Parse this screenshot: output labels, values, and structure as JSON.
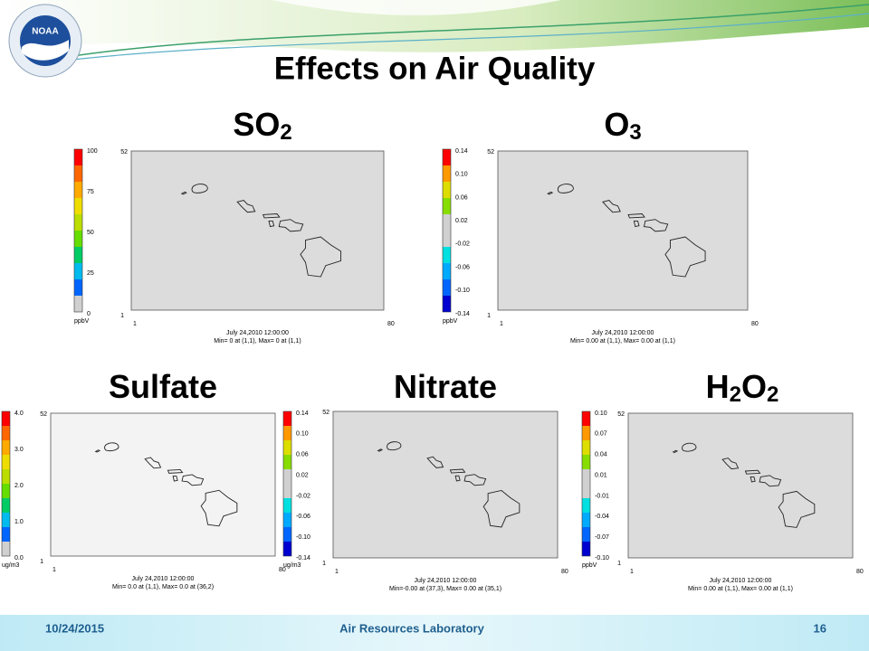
{
  "header": {
    "logo": "NOAA",
    "title": "Effects on Air Quality"
  },
  "panels": [
    {
      "label": [
        "SO",
        "2"
      ],
      "ticks": [
        "100",
        "75",
        "50",
        "25",
        "0"
      ],
      "unit": "ppbV",
      "y_top": "52",
      "y_bottom": "1",
      "x_left": "1",
      "x_right": "80",
      "date": "July 24,2010 12:00:00",
      "minmax": "Min=   0 at (1,1), Max=   0 at (1,1)"
    },
    {
      "label": [
        "O",
        "3"
      ],
      "ticks": [
        "0.14",
        "0.10",
        "0.06",
        "0.02",
        "-0.02",
        "-0.06",
        "-0.10",
        "-0.14"
      ],
      "unit": "ppbV",
      "y_top": "52",
      "y_bottom": "1",
      "x_left": "1",
      "x_right": "80",
      "date": "July 24,2010 12:00:00",
      "minmax": "Min= 0.00 at (1,1), Max= 0.00 at (1,1)"
    },
    {
      "label": [
        "Sulfate"
      ],
      "ticks": [
        "4.0",
        "3.0",
        "2.0",
        "1.0",
        "0.0"
      ],
      "unit": "ug/m3",
      "y_top": "52",
      "y_bottom": "1",
      "x_left": "1",
      "x_right": "80",
      "date": "July 24,2010 12:00:00",
      "minmax": "Min= 0.0 at (1,1), Max= 0.0 at (36,2)"
    },
    {
      "label": [
        "Nitrate"
      ],
      "ticks": [
        "0.14",
        "0.10",
        "0.06",
        "0.02",
        "-0.02",
        "-0.06",
        "-0.10",
        "-0.14"
      ],
      "unit": "ug/m3",
      "y_top": "52",
      "y_bottom": "1",
      "x_left": "1",
      "x_right": "80",
      "date": "July 24,2010 12:00:00",
      "minmax": "Min=-0.00 at (37,3), Max= 0.00 at (35,1)"
    },
    {
      "label": [
        "H",
        "2",
        "O",
        "2"
      ],
      "ticks": [
        "0.10",
        "0.07",
        "0.04",
        "0.01",
        "-0.01",
        "-0.04",
        "-0.07",
        "-0.10"
      ],
      "unit": "ppbV",
      "y_top": "52",
      "y_bottom": "1",
      "x_left": "1",
      "x_right": "80",
      "date": "July 24,2010 12:00:00",
      "minmax": "Min= 0.00 at (1,1), Max= 0.00 at (1,1)"
    }
  ],
  "footer": {
    "date": "10/24/2015",
    "org": "Air Resources Laboratory",
    "page": "16"
  }
}
